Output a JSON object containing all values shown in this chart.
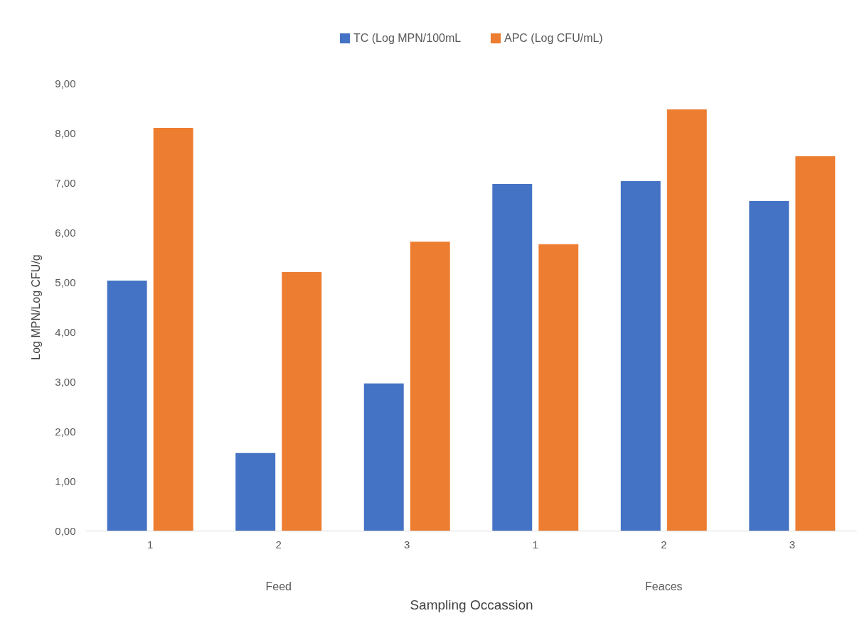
{
  "chart_data": {
    "type": "bar",
    "xlabel": "Sampling Occassion",
    "ylabel": "Log MPN/Log CFU/g",
    "categories": [
      "1",
      "2",
      "3",
      "1",
      "2",
      "3"
    ],
    "annotations": [
      "Feed",
      "Feaces"
    ],
    "series": [
      {
        "name": "TC (Log MPN/100mL",
        "color": "#4472c4",
        "values": [
          5.03,
          1.56,
          2.96,
          6.97,
          7.03,
          6.63
        ]
      },
      {
        "name": "APC (Log CFU/mL)",
        "color": "#ed7d31",
        "values": [
          8.1,
          5.2,
          5.81,
          5.76,
          8.47,
          7.53
        ]
      }
    ],
    "ylim": [
      0,
      9
    ],
    "yticks": [
      {
        "value": 0,
        "label": "0,00"
      },
      {
        "value": 1,
        "label": "1,00"
      },
      {
        "value": 2,
        "label": "2,00"
      },
      {
        "value": 3,
        "label": "3,00"
      },
      {
        "value": 4,
        "label": "4,00"
      },
      {
        "value": 5,
        "label": "5,00"
      },
      {
        "value": 6,
        "label": "6,00"
      },
      {
        "value": 7,
        "label": "7,00"
      },
      {
        "value": 8,
        "label": "8,00"
      },
      {
        "value": 9,
        "label": "9,00"
      }
    ],
    "grid": false,
    "legend": "top"
  }
}
